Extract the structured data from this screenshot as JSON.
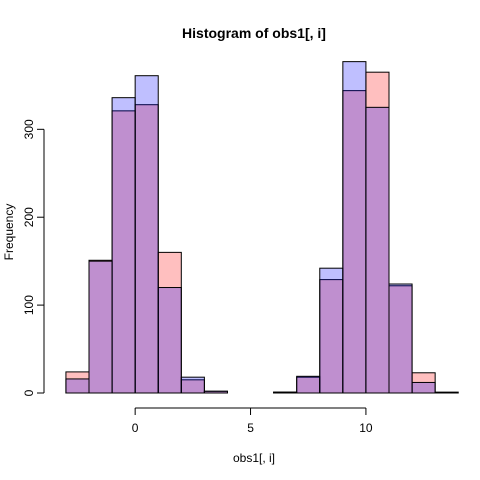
{
  "chart_data": {
    "type": "bar",
    "title": "Histogram of obs1[, i]",
    "xlabel": "obs1[, i]",
    "ylabel": "Frequency",
    "xlim": [
      -3.3,
      13.6
    ],
    "ylim": [
      0,
      380
    ],
    "grid": false,
    "legend": "none",
    "bin_width": 1,
    "xticks": [
      0,
      5,
      10
    ],
    "yticks": [
      0,
      100,
      200,
      300
    ],
    "series": [
      {
        "color": "#ff000040",
        "bins": [
          {
            "x0": -3,
            "x1": -2,
            "count": 24
          },
          {
            "x0": -2,
            "x1": -1,
            "count": 151
          },
          {
            "x0": -1,
            "x1": 0,
            "count": 321
          },
          {
            "x0": 0,
            "x1": 1,
            "count": 328
          },
          {
            "x0": 1,
            "x1": 2,
            "count": 160
          },
          {
            "x0": 2,
            "x1": 3,
            "count": 15
          },
          {
            "x0": 3,
            "x1": 4,
            "count": 2
          },
          {
            "x0": 4,
            "x1": 5,
            "count": 0
          },
          {
            "x0": 5,
            "x1": 6,
            "count": 0
          },
          {
            "x0": 6,
            "x1": 7,
            "count": 1
          },
          {
            "x0": 7,
            "x1": 8,
            "count": 18
          },
          {
            "x0": 8,
            "x1": 9,
            "count": 129
          },
          {
            "x0": 9,
            "x1": 10,
            "count": 344
          },
          {
            "x0": 10,
            "x1": 11,
            "count": 365
          },
          {
            "x0": 11,
            "x1": 12,
            "count": 122
          },
          {
            "x0": 12,
            "x1": 13,
            "count": 23
          },
          {
            "x0": 13,
            "x1": 14,
            "count": 0
          }
        ]
      },
      {
        "color": "#0000ff40",
        "bins": [
          {
            "x0": -3,
            "x1": -2,
            "count": 16
          },
          {
            "x0": -2,
            "x1": -1,
            "count": 150
          },
          {
            "x0": -1,
            "x1": 0,
            "count": 336
          },
          {
            "x0": 0,
            "x1": 1,
            "count": 361
          },
          {
            "x0": 1,
            "x1": 2,
            "count": 120
          },
          {
            "x0": 2,
            "x1": 3,
            "count": 18
          },
          {
            "x0": 3,
            "x1": 4,
            "count": 2
          },
          {
            "x0": 4,
            "x1": 5,
            "count": 0
          },
          {
            "x0": 5,
            "x1": 6,
            "count": 0
          },
          {
            "x0": 6,
            "x1": 7,
            "count": 1
          },
          {
            "x0": 7,
            "x1": 8,
            "count": 19
          },
          {
            "x0": 8,
            "x1": 9,
            "count": 142
          },
          {
            "x0": 9,
            "x1": 10,
            "count": 377
          },
          {
            "x0": 10,
            "x1": 11,
            "count": 325
          },
          {
            "x0": 11,
            "x1": 12,
            "count": 124
          },
          {
            "x0": 12,
            "x1": 13,
            "count": 12
          },
          {
            "x0": 13,
            "x1": 14,
            "count": 1
          }
        ]
      }
    ]
  }
}
